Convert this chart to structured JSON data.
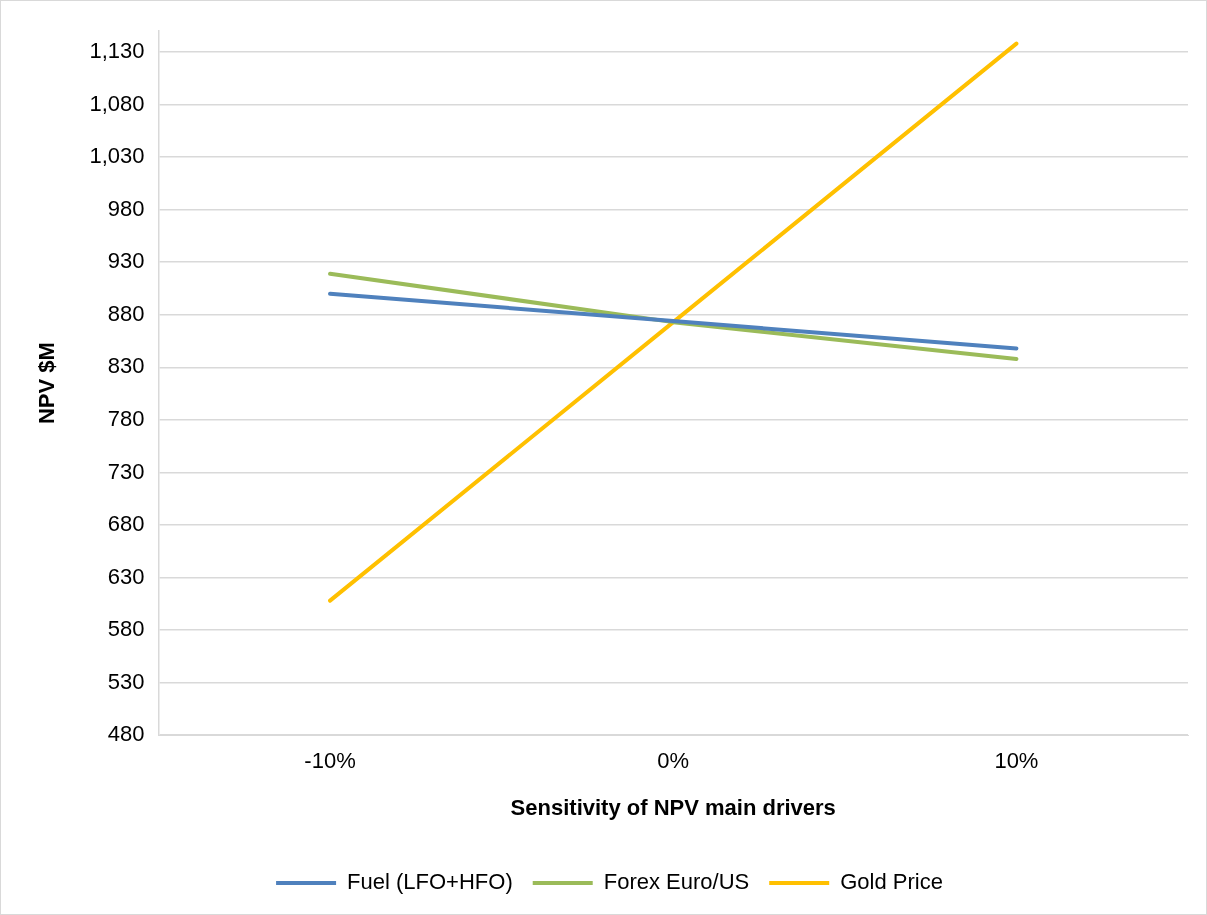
{
  "chart_data": {
    "type": "line",
    "xlabel": "Sensitivity of NPV main drivers",
    "ylabel": "NPV $M",
    "categories": [
      "-10%",
      "0%",
      "10%"
    ],
    "series": [
      {
        "name": "Fuel (LFO+HFO)",
        "color": "#4f81bd",
        "values": [
          900,
          874,
          848
        ]
      },
      {
        "name": "Forex Euro/US",
        "color": "#9bbb59",
        "values": [
          919,
          873,
          838
        ]
      },
      {
        "name": "Gold Price",
        "color": "#ffc000",
        "values": [
          608,
          873,
          1138
        ]
      }
    ],
    "ylim": [
      480,
      1150
    ],
    "yticks": [
      {
        "value": 480,
        "label": "480"
      },
      {
        "value": 530,
        "label": "530"
      },
      {
        "value": 580,
        "label": "580"
      },
      {
        "value": 630,
        "label": "630"
      },
      {
        "value": 680,
        "label": "680"
      },
      {
        "value": 730,
        "label": "730"
      },
      {
        "value": 780,
        "label": "780"
      },
      {
        "value": 830,
        "label": "830"
      },
      {
        "value": 880,
        "label": "880"
      },
      {
        "value": 930,
        "label": "930"
      },
      {
        "value": 980,
        "label": "980"
      },
      {
        "value": 1030,
        "label": "1,030"
      },
      {
        "value": 1080,
        "label": "1,080"
      },
      {
        "value": 1130,
        "label": "1,130"
      }
    ],
    "grid": "y",
    "legend": "bottom",
    "marker": "none",
    "line_style": "solid"
  }
}
